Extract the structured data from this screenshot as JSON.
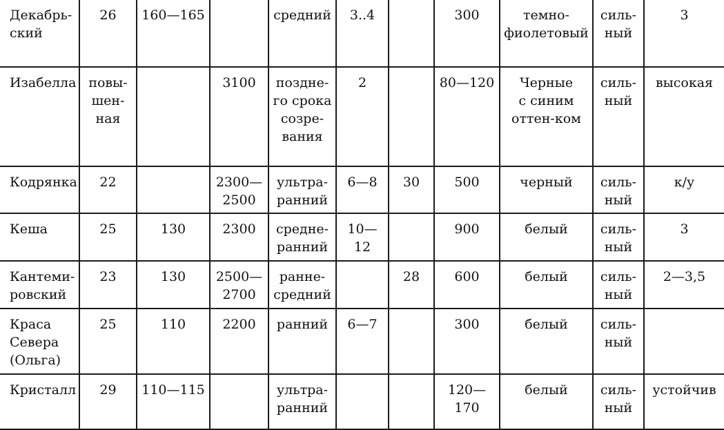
{
  "table": {
    "rows": [
      [
        "Декабрь-\nский",
        "26",
        "160—165",
        "",
        "средний",
        "3..4",
        "",
        "300",
        "темно-\nфиолетовый",
        "силь-\nный",
        "3"
      ],
      [
        "Изабелла",
        "повы-\nшен-\nная",
        "",
        "3100",
        "поздне-\nго срока\nсозре-\nвания",
        "2",
        "",
        "80—120",
        "Черные\nс синим\nоттен-ком",
        "силь-\nный",
        "высокая"
      ],
      [
        "Кодрянка",
        "22",
        "",
        "2300—\n2500",
        "ультра-\nранний",
        "6—8",
        "30",
        "500",
        "черный",
        "силь-\nный",
        "к/у"
      ],
      [
        "Кеша",
        "25",
        "130",
        "2300",
        "средне-\nранний",
        "10—\n12",
        "",
        "900",
        "белый",
        "силь-\nный",
        "3"
      ],
      [
        "Кантеми-\nровский",
        "23",
        "130",
        "2500—\n2700",
        "ранне-\nсредний",
        "",
        "28",
        "600",
        "белый",
        "силь-\nный",
        "2—3,5"
      ],
      [
        "Краса\nСевера\n(Ольга)",
        "25",
        "110",
        "2200",
        "ранний",
        "6—7",
        "",
        "300",
        "белый",
        "силь-\nный",
        ""
      ],
      [
        "Кристалл",
        "29",
        "110—115",
        "",
        "ультра-\nранний",
        "",
        "",
        "120—\n170",
        "белый",
        "силь-\nный",
        "устойчив"
      ]
    ]
  }
}
